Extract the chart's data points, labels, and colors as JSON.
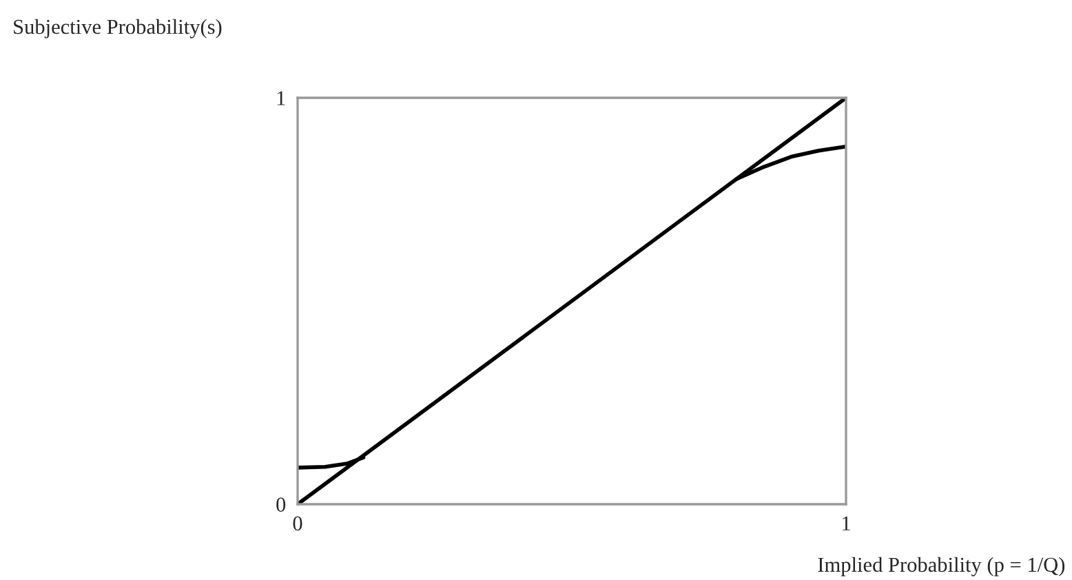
{
  "chart_data": {
    "type": "line",
    "xlabel": "Implied Probability (p = 1/Q)",
    "ylabel": "Subjective Probability(s)",
    "series": [
      {
        "color": "#000000",
        "x": [
          0,
          1
        ],
        "values": [
          0,
          1
        ]
      },
      {
        "color": "#000000",
        "x": [
          0,
          0.05,
          0.09,
          0.12
        ],
        "values": [
          0.09,
          0.092,
          0.1,
          0.115
        ]
      },
      {
        "color": "#000000",
        "x": [
          0.8,
          0.85,
          0.9,
          0.95,
          1
        ],
        "values": [
          0.8,
          0.83,
          0.855,
          0.87,
          0.88
        ]
      }
    ],
    "xlim": [
      0,
      1
    ],
    "ylim": [
      0,
      1
    ],
    "xticks": [
      0,
      1
    ],
    "yticks": [
      0,
      1
    ],
    "legend": false,
    "marker": "none",
    "line_style": "solid"
  }
}
